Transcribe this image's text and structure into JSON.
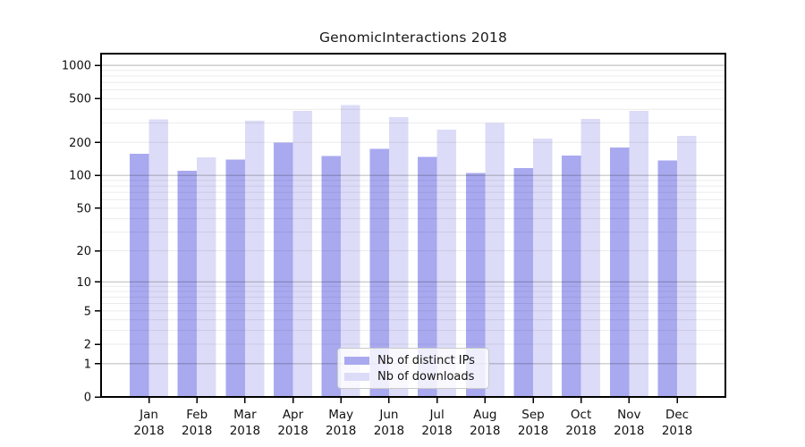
{
  "chart_data": {
    "type": "bar",
    "title": "GenomicInteractions 2018",
    "year_label": "2018",
    "categories": [
      "Jan",
      "Feb",
      "Mar",
      "Apr",
      "May",
      "Jun",
      "Jul",
      "Aug",
      "Sep",
      "Oct",
      "Nov",
      "Dec"
    ],
    "series": [
      {
        "name": "Nb of distinct IPs",
        "color": "#a9a9f0",
        "values": [
          157,
          110,
          140,
          200,
          150,
          175,
          147,
          105,
          117,
          152,
          180,
          137
        ]
      },
      {
        "name": "Nb of downloads",
        "color": "#dcdcf8",
        "values": [
          325,
          146,
          315,
          385,
          435,
          340,
          260,
          300,
          217,
          327,
          385,
          230
        ]
      }
    ],
    "xlabel": "",
    "ylabel": "",
    "yscale": "log1p",
    "ylim": [
      0,
      1276
    ],
    "y_ticks": [
      0,
      1,
      2,
      5,
      10,
      20,
      50,
      100,
      200,
      500,
      1000
    ],
    "grid": {
      "on": true,
      "major": [
        1,
        10,
        100,
        1000
      ],
      "minor": [
        2,
        3,
        4,
        5,
        6,
        7,
        8,
        9,
        20,
        30,
        40,
        50,
        60,
        70,
        80,
        90,
        200,
        300,
        400,
        500,
        600,
        700,
        800,
        900
      ]
    },
    "legend_position": "bottom-center",
    "colors": {
      "spine": "#000000",
      "major_grid": "rgba(0,0,0,0.24)",
      "minor_grid": "rgba(0,0,0,0.08)",
      "tick_label": "#111111"
    }
  }
}
